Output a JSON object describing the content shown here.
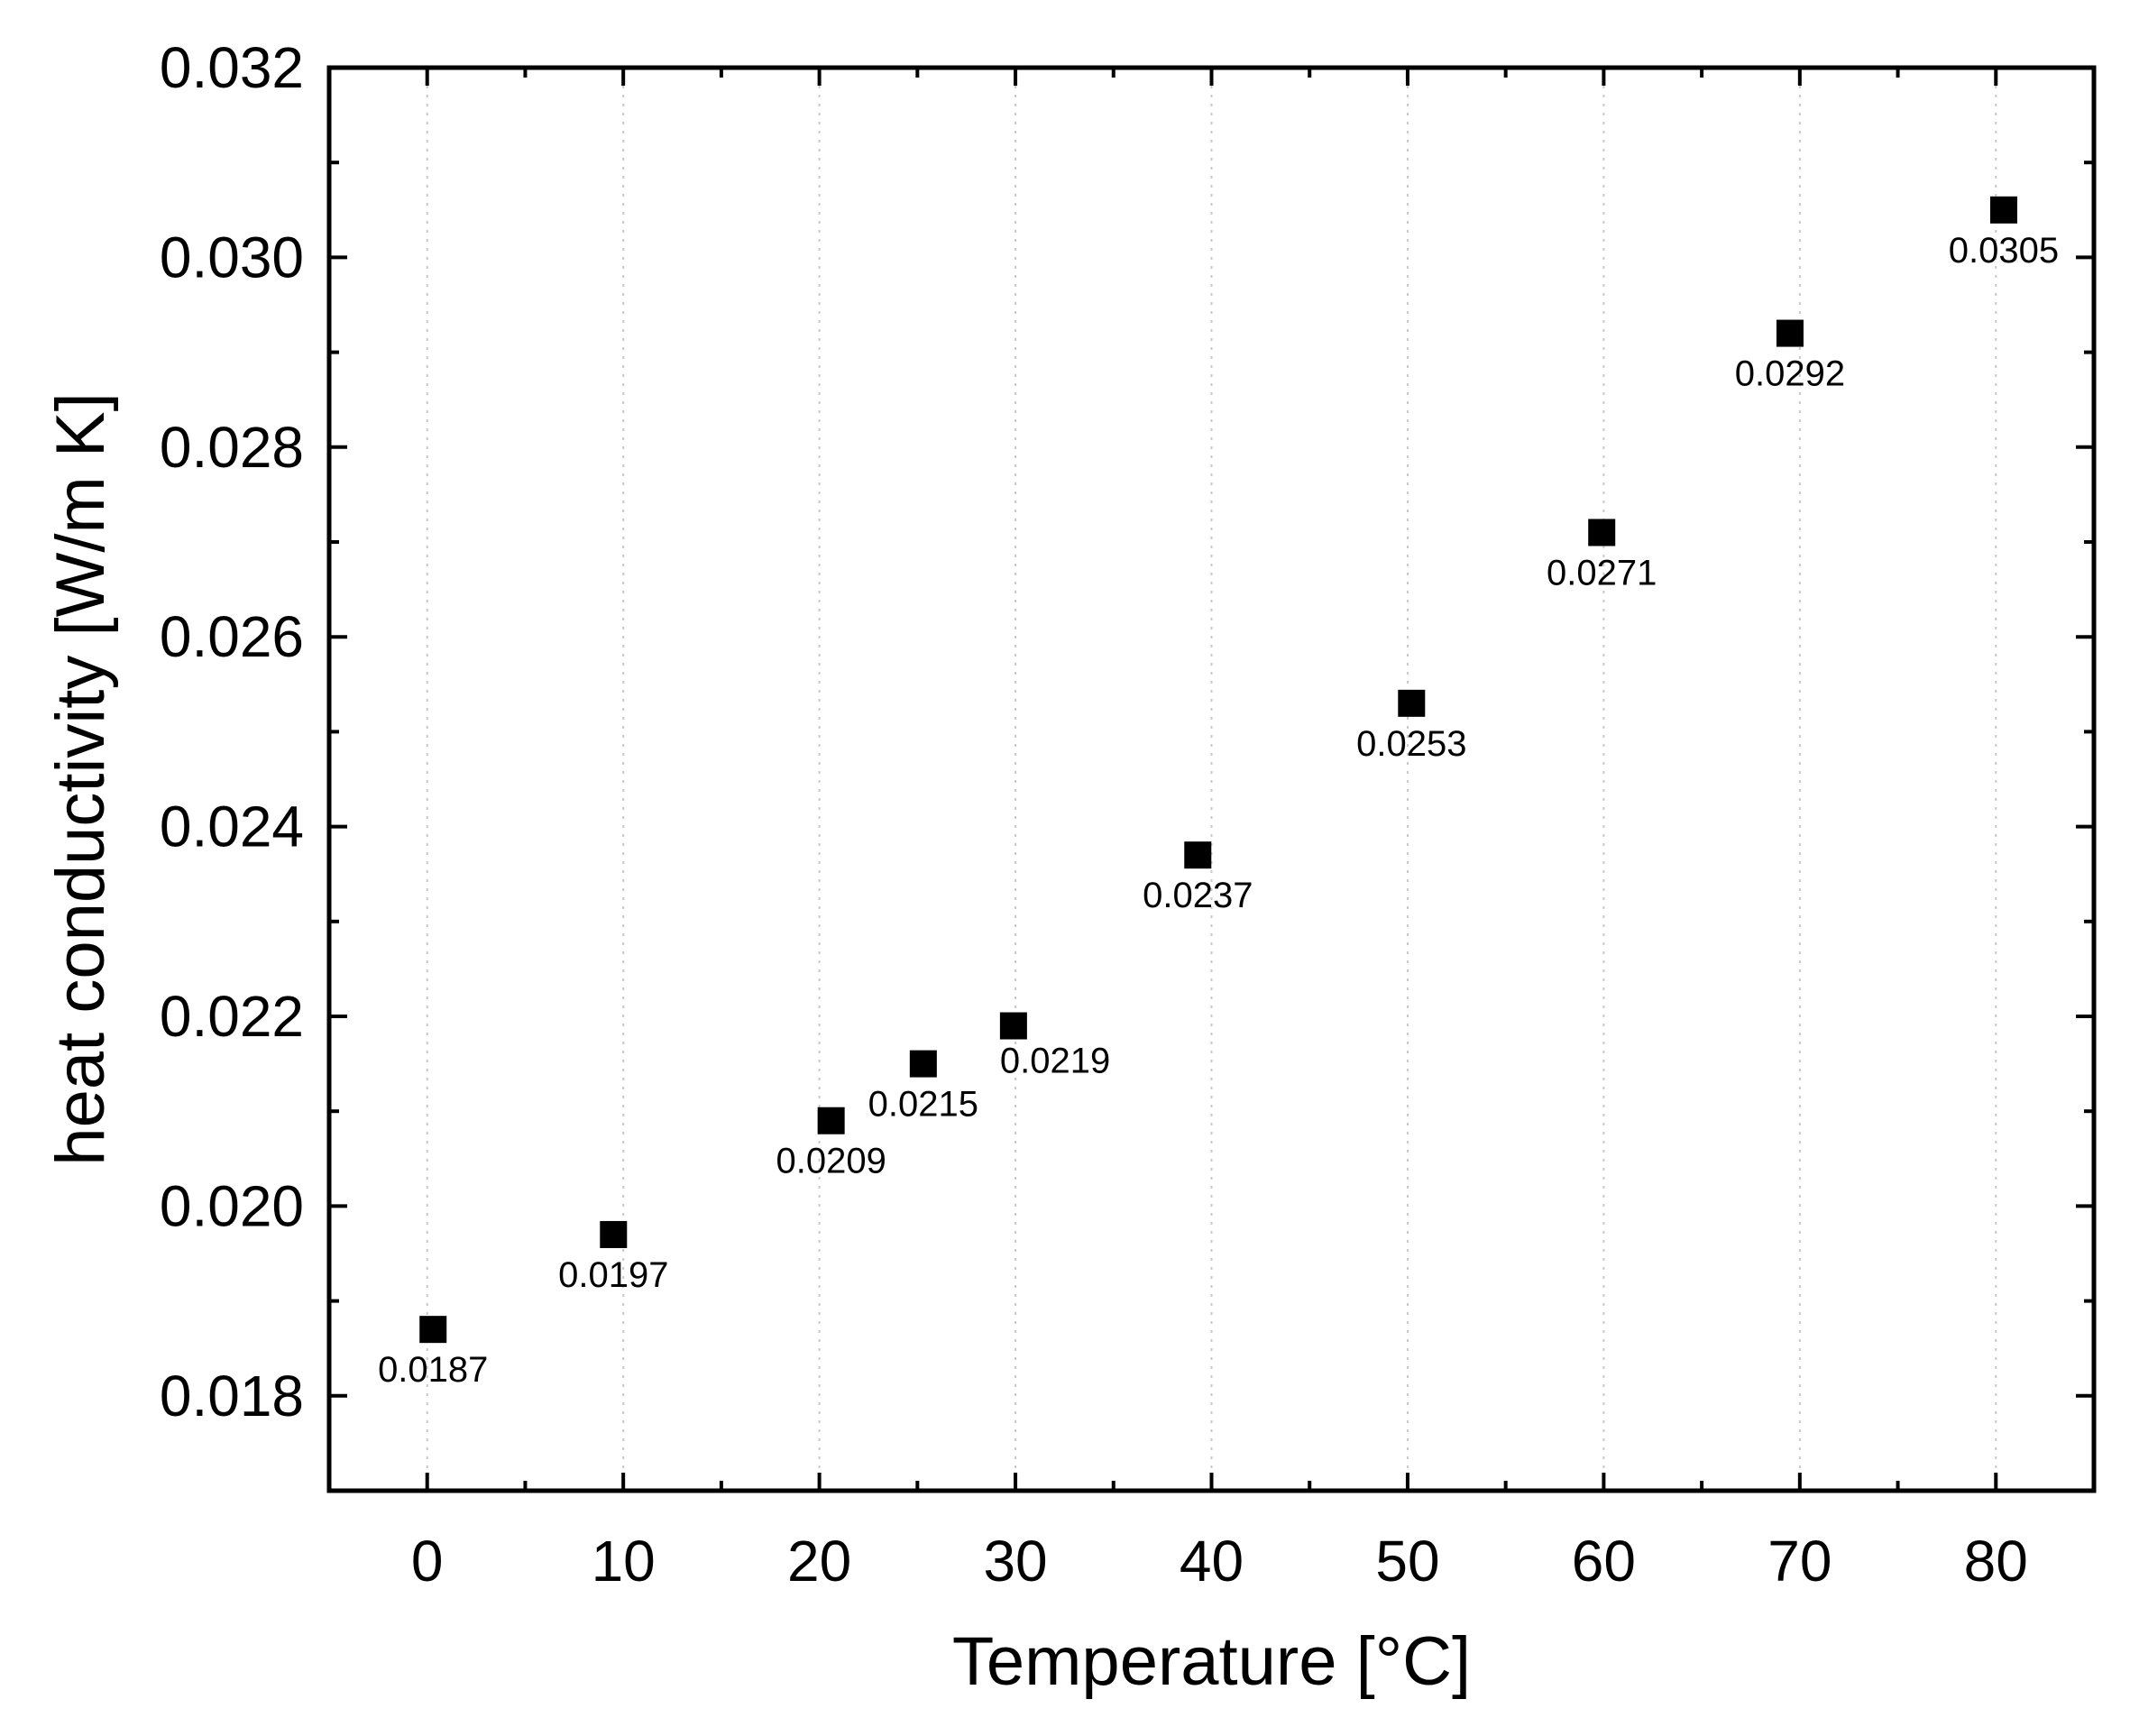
{
  "chart_data": {
    "type": "scatter",
    "xlabel": "Temperature [°C]",
    "ylabel": "heat conductivity [W/m K]",
    "xlim": [
      -5,
      85
    ],
    "ylim": [
      0.017,
      0.032
    ],
    "xticks": [
      0,
      10,
      20,
      30,
      40,
      50,
      60,
      70,
      80
    ],
    "xtick_labels": [
      "0",
      "10",
      "20",
      "30",
      "40",
      "50",
      "60",
      "70",
      "80"
    ],
    "yticks": [
      0.018,
      0.02,
      0.022,
      0.024,
      0.026,
      0.028,
      0.03,
      0.032
    ],
    "ytick_labels": [
      "0.018",
      "0.020",
      "0.022",
      "0.024",
      "0.026",
      "0.028",
      "0.030",
      "0.032"
    ],
    "grid": "vertical dotted at major x ticks",
    "marker": "square",
    "colors": {
      "marker": "#000000",
      "grid": "#c8c8c8",
      "axis": "#000000"
    },
    "points": [
      {
        "x": 0.3,
        "y": 0.0187,
        "label": "0.0187",
        "label_pos": "below"
      },
      {
        "x": 9.5,
        "y": 0.0197,
        "label": "0.0197",
        "label_pos": "below"
      },
      {
        "x": 20.6,
        "y": 0.0209,
        "label": "0.0209",
        "label_pos": "below"
      },
      {
        "x": 25.3,
        "y": 0.0215,
        "label": "0.0215",
        "label_pos": "below"
      },
      {
        "x": 29.9,
        "y": 0.0219,
        "label": "0.0219",
        "label_pos": "below-right"
      },
      {
        "x": 39.3,
        "y": 0.0237,
        "label": "0.0237",
        "label_pos": "below"
      },
      {
        "x": 50.2,
        "y": 0.0253,
        "label": "0.0253",
        "label_pos": "below"
      },
      {
        "x": 59.9,
        "y": 0.0271,
        "label": "0.0271",
        "label_pos": "below"
      },
      {
        "x": 69.5,
        "y": 0.0292,
        "label": "0.0292",
        "label_pos": "below"
      },
      {
        "x": 80.4,
        "y": 0.0305,
        "label": "0.0305",
        "label_pos": "below"
      }
    ]
  }
}
